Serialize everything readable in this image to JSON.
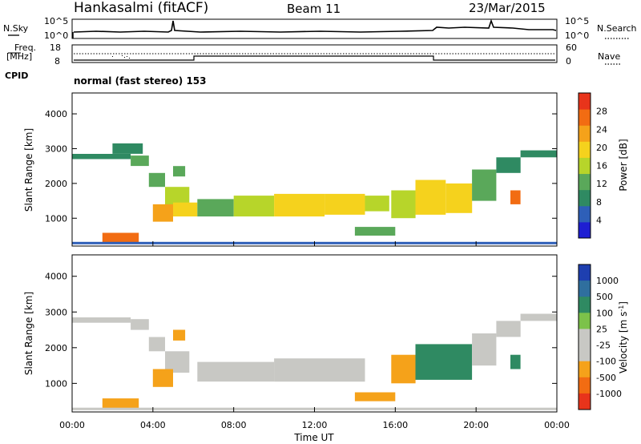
{
  "header": {
    "station": "Hankasalmi (fitACF)",
    "beam": "Beam 11",
    "date": "23/Mar/2015"
  },
  "noise_panel": {
    "left_label": "N.Sky",
    "left_ticks": [
      "10^5",
      "10^0"
    ],
    "right_ticks": [
      "10^5",
      "10^0"
    ],
    "right_label": "N.Search"
  },
  "freq_panel": {
    "left_label_1": "Freq.",
    "left_label_2": "[MHz]",
    "left_ticks": [
      "18",
      "8"
    ],
    "cpid_label": "CPID",
    "right_ticks": [
      "60",
      "0"
    ],
    "right_label": "Nave"
  },
  "cpid_text": "normal (fast stereo) 153",
  "colors": {
    "power_scale": [
      "#1e1ed2",
      "#2e5fb8",
      "#2f8a62",
      "#5aa85a",
      "#b7d52a",
      "#f5d21d",
      "#f5a21a",
      "#f26c12",
      "#e8341b"
    ],
    "velocity_scale": [
      "#1e3fb0",
      "#2f6f9e",
      "#2f8a62",
      "#7cc24a",
      "#c8c8c4",
      "#c8c8c4",
      "#f5a21a",
      "#f26c12",
      "#e8341b"
    ],
    "ground_scatter": "#c8c8c4"
  },
  "chart_data": [
    {
      "type": "heatmap",
      "name": "power",
      "ylabel": "Slant Range [km]",
      "yticks": [
        "1000",
        "2000",
        "3000",
        "4000"
      ],
      "ylim": [
        200,
        4600
      ],
      "xlim": [
        0,
        24
      ],
      "colorbar_label": "Power [dB]",
      "colorbar_ticks": [
        "4",
        "8",
        "12",
        "16",
        "20",
        "24",
        "28"
      ],
      "colorbar_range": [
        0,
        32
      ],
      "bands": [
        {
          "t0": 0.0,
          "t1": 2.9,
          "r_lo": 2700,
          "r_hi": 2850,
          "value": 8
        },
        {
          "t0": 2.0,
          "t1": 3.5,
          "r_lo": 2850,
          "r_hi": 3150,
          "value": 10
        },
        {
          "t0": 2.9,
          "t1": 3.8,
          "r_lo": 2500,
          "r_hi": 2800,
          "value": 12
        },
        {
          "t0": 3.8,
          "t1": 4.6,
          "r_lo": 1900,
          "r_hi": 2300,
          "value": 14
        },
        {
          "t0": 4.6,
          "t1": 5.8,
          "r_lo": 1300,
          "r_hi": 1900,
          "value": 16
        },
        {
          "t0": 4.0,
          "t1": 5.0,
          "r_lo": 900,
          "r_hi": 1400,
          "value": 22
        },
        {
          "t0": 5.0,
          "t1": 6.2,
          "r_lo": 1050,
          "r_hi": 1450,
          "value": 18
        },
        {
          "t0": 5.0,
          "t1": 5.6,
          "r_lo": 2200,
          "r_hi": 2500,
          "value": 14
        },
        {
          "t0": 6.2,
          "t1": 8.0,
          "r_lo": 1050,
          "r_hi": 1550,
          "value": 14
        },
        {
          "t0": 8.0,
          "t1": 10.0,
          "r_lo": 1050,
          "r_hi": 1650,
          "value": 15
        },
        {
          "t0": 10.0,
          "t1": 12.5,
          "r_lo": 1050,
          "r_hi": 1700,
          "value": 18
        },
        {
          "t0": 12.5,
          "t1": 14.5,
          "r_lo": 1100,
          "r_hi": 1700,
          "value": 19
        },
        {
          "t0": 14.5,
          "t1": 15.7,
          "r_lo": 1200,
          "r_hi": 1650,
          "value": 16
        },
        {
          "t0": 14.0,
          "t1": 16.0,
          "r_lo": 500,
          "r_hi": 750,
          "value": 13
        },
        {
          "t0": 15.8,
          "t1": 17.0,
          "r_lo": 1000,
          "r_hi": 1800,
          "value": 17
        },
        {
          "t0": 17.0,
          "t1": 18.5,
          "r_lo": 1100,
          "r_hi": 2100,
          "value": 18
        },
        {
          "t0": 18.5,
          "t1": 19.8,
          "r_lo": 1150,
          "r_hi": 2000,
          "value": 20
        },
        {
          "t0": 19.8,
          "t1": 21.0,
          "r_lo": 1500,
          "r_hi": 2400,
          "value": 13
        },
        {
          "t0": 21.0,
          "t1": 22.2,
          "r_lo": 2300,
          "r_hi": 2750,
          "value": 9
        },
        {
          "t0": 21.7,
          "t1": 22.2,
          "r_lo": 1400,
          "r_hi": 1800,
          "value": 27
        },
        {
          "t0": 22.2,
          "t1": 24.0,
          "r_lo": 2750,
          "r_hi": 2950,
          "value": 8
        },
        {
          "t0": 1.5,
          "t1": 3.3,
          "r_lo": 300,
          "r_hi": 580,
          "value": 25
        },
        {
          "t0": 0.0,
          "t1": 24.0,
          "r_lo": 250,
          "r_hi": 320,
          "value": 6
        }
      ]
    },
    {
      "type": "heatmap",
      "name": "velocity",
      "ylabel": "Slant Range [km]",
      "yticks": [
        "1000",
        "2000",
        "3000",
        "4000"
      ],
      "ylim": [
        200,
        4600
      ],
      "xlabel": "Time UT",
      "xticks": [
        "00:00",
        "04:00",
        "08:00",
        "12:00",
        "16:00",
        "20:00",
        "00:00"
      ],
      "xlim": [
        0,
        24
      ],
      "colorbar_label": "Velocity [m s^-1]",
      "colorbar_ticks": [
        "1000",
        "500",
        "100",
        "25",
        "-25",
        "-100",
        "-500",
        "-1000"
      ],
      "bands": [
        {
          "t0": 0.0,
          "t1": 2.9,
          "r_lo": 2700,
          "r_hi": 2850,
          "value": 0
        },
        {
          "t0": 2.9,
          "t1": 3.8,
          "r_lo": 2500,
          "r_hi": 2800,
          "value": 0
        },
        {
          "t0": 3.8,
          "t1": 4.6,
          "r_lo": 1900,
          "r_hi": 2300,
          "value": 0
        },
        {
          "t0": 4.6,
          "t1": 5.8,
          "r_lo": 1300,
          "r_hi": 1900,
          "value": 0
        },
        {
          "t0": 4.0,
          "t1": 5.0,
          "r_lo": 900,
          "r_hi": 1400,
          "value": -150
        },
        {
          "t0": 5.0,
          "t1": 5.6,
          "r_lo": 2200,
          "r_hi": 2500,
          "value": -200
        },
        {
          "t0": 6.2,
          "t1": 10.0,
          "r_lo": 1050,
          "r_hi": 1600,
          "value": 0
        },
        {
          "t0": 10.0,
          "t1": 14.5,
          "r_lo": 1050,
          "r_hi": 1700,
          "value": 0
        },
        {
          "t0": 14.0,
          "t1": 16.0,
          "r_lo": 500,
          "r_hi": 750,
          "value": -300
        },
        {
          "t0": 15.8,
          "t1": 17.0,
          "r_lo": 1000,
          "r_hi": 1800,
          "value": -200
        },
        {
          "t0": 17.0,
          "t1": 19.8,
          "r_lo": 1100,
          "r_hi": 2100,
          "value": 150
        },
        {
          "t0": 19.8,
          "t1": 21.0,
          "r_lo": 1500,
          "r_hi": 2400,
          "value": 0
        },
        {
          "t0": 21.0,
          "t1": 22.2,
          "r_lo": 2300,
          "r_hi": 2750,
          "value": 0
        },
        {
          "t0": 21.7,
          "t1": 22.2,
          "r_lo": 1400,
          "r_hi": 1800,
          "value": 300
        },
        {
          "t0": 22.2,
          "t1": 24.0,
          "r_lo": 2750,
          "r_hi": 2950,
          "value": 0
        },
        {
          "t0": 1.5,
          "t1": 3.3,
          "r_lo": 300,
          "r_hi": 580,
          "value": -150
        },
        {
          "t0": 0.0,
          "t1": 24.0,
          "r_lo": 250,
          "r_hi": 320,
          "value": 0
        }
      ]
    }
  ]
}
